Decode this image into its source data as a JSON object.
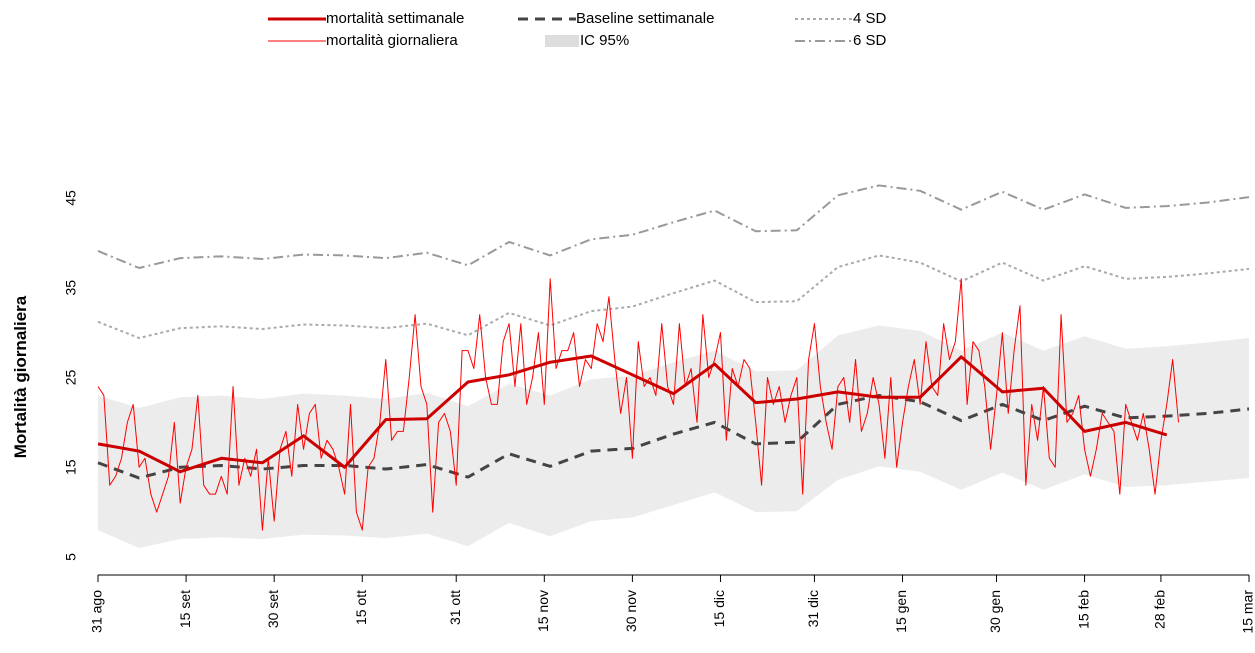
{
  "chart_data": {
    "type": "line",
    "y_label": "Mortalità giornaliera",
    "xlim": [
      0,
      196
    ],
    "ylim": [
      5,
      45
    ],
    "xticks": [
      {
        "value": 0,
        "label": "31 ago"
      },
      {
        "value": 15,
        "label": "15 set"
      },
      {
        "value": 30,
        "label": "30 set"
      },
      {
        "value": 45,
        "label": "15 ott"
      },
      {
        "value": 61,
        "label": "31 ott"
      },
      {
        "value": 76,
        "label": "15 nov"
      },
      {
        "value": 91,
        "label": "30 nov"
      },
      {
        "value": 106,
        "label": "15 dic"
      },
      {
        "value": 122,
        "label": "31 dic"
      },
      {
        "value": 137,
        "label": "15 gen"
      },
      {
        "value": 153,
        "label": "30 gen"
      },
      {
        "value": 168,
        "label": "15 feb"
      },
      {
        "value": 181,
        "label": "28 feb"
      },
      {
        "value": 196,
        "label": "15 mar"
      }
    ],
    "yticks": [
      5,
      15,
      25,
      35,
      45
    ],
    "series": [
      {
        "name": "mortalità settimanale",
        "color": "#cc0000",
        "width": 3,
        "dash": "none",
        "x": [
          0,
          7,
          14,
          21,
          28,
          35,
          42,
          49,
          56,
          63,
          70,
          77,
          84,
          91,
          98,
          105,
          112,
          119,
          126,
          133,
          140,
          147,
          154,
          161,
          168,
          175,
          182
        ],
        "values": [
          17.6,
          16.8,
          14.5,
          16,
          15.5,
          18.5,
          15,
          20.3,
          20.4,
          24.5,
          25.3,
          26.7,
          27.4,
          25.3,
          23.2,
          26.5,
          22.2,
          22.6,
          23.4,
          22.8,
          22.8,
          27.3,
          23.4,
          23.8,
          19,
          20,
          18.6
        ]
      },
      {
        "name": "mortalità giornaliera",
        "color": "#ff0000",
        "width": 1,
        "dash": "none",
        "x": [
          0,
          1,
          2,
          3,
          4,
          5,
          6,
          7,
          8,
          9,
          10,
          11,
          12,
          13,
          14,
          15,
          16,
          17,
          18,
          19,
          20,
          21,
          22,
          23,
          24,
          25,
          26,
          27,
          28,
          29,
          30,
          31,
          32,
          33,
          34,
          35,
          36,
          37,
          38,
          39,
          40,
          41,
          42,
          43,
          44,
          45,
          46,
          47,
          48,
          49,
          50,
          51,
          52,
          53,
          54,
          55,
          56,
          57,
          58,
          59,
          60,
          61,
          62,
          63,
          64,
          65,
          66,
          67,
          68,
          69,
          70,
          71,
          72,
          73,
          74,
          75,
          76,
          77,
          78,
          79,
          80,
          81,
          82,
          83,
          84,
          85,
          86,
          87,
          88,
          89,
          90,
          91,
          92,
          93,
          94,
          95,
          96,
          97,
          98,
          99,
          100,
          101,
          102,
          103,
          104,
          105,
          106,
          107,
          108,
          109,
          110,
          111,
          112,
          113,
          114,
          115,
          116,
          117,
          118,
          119,
          120,
          121,
          122,
          123,
          124,
          125,
          126,
          127,
          128,
          129,
          130,
          131,
          132,
          133,
          134,
          135,
          136,
          137,
          138,
          139,
          140,
          141,
          142,
          143,
          144,
          145,
          146,
          147,
          148,
          149,
          150,
          151,
          152,
          153,
          154,
          155,
          156,
          157,
          158,
          159,
          160,
          161,
          162,
          163,
          164,
          165,
          166,
          167,
          168,
          169,
          170,
          171,
          172,
          173,
          174,
          175,
          176,
          177,
          178,
          179,
          180,
          181,
          182,
          183,
          184
        ],
        "values": [
          24,
          23,
          13,
          14,
          16,
          20,
          22,
          15,
          16,
          12,
          10,
          12,
          14,
          20,
          11,
          15,
          17,
          23,
          13,
          12,
          12,
          14,
          12,
          24,
          13,
          16,
          14,
          17,
          8,
          16,
          9,
          17,
          19,
          14,
          22,
          17,
          21,
          22,
          16,
          18,
          17,
          15,
          12,
          22,
          10,
          8,
          15,
          16,
          20,
          27,
          18,
          19,
          19,
          25,
          32,
          24,
          22,
          10,
          20,
          21,
          19,
          13,
          28,
          28,
          26,
          32,
          25,
          22,
          22,
          29,
          31,
          24,
          31,
          22,
          25,
          30,
          22,
          36,
          26,
          28,
          28,
          30,
          24,
          27,
          26,
          31,
          29,
          34,
          27,
          21,
          25,
          16,
          29,
          24,
          25,
          23,
          31,
          24,
          22,
          31,
          24,
          26,
          20,
          32,
          25,
          27,
          30,
          18,
          26,
          24,
          27,
          26,
          20,
          13,
          25,
          22,
          24,
          20,
          23,
          25,
          12,
          27,
          31,
          24,
          20,
          17,
          24,
          25,
          20,
          27,
          19,
          21,
          25,
          22,
          16,
          25,
          15,
          20,
          24,
          27,
          22,
          29,
          24,
          23,
          31,
          27,
          29,
          36,
          22,
          29,
          28,
          24,
          17,
          23,
          30,
          21,
          28,
          33,
          13,
          22,
          18,
          24,
          16,
          15,
          32,
          20,
          21,
          23,
          17,
          14,
          17,
          21,
          20,
          19,
          12,
          22,
          20,
          18,
          21,
          17,
          12,
          18,
          22,
          27,
          20
        ]
      },
      {
        "name": "Baseline settimanale",
        "color": "#444444",
        "width": 3,
        "dash": "10,7",
        "x": [
          0,
          7,
          14,
          21,
          28,
          35,
          42,
          49,
          56,
          63,
          70,
          77,
          84,
          91,
          98,
          105,
          112,
          119,
          126,
          133,
          140,
          147,
          154,
          161,
          168,
          175,
          182,
          189,
          196
        ],
        "values": [
          15.5,
          13.8,
          15,
          15.2,
          14.8,
          15.2,
          15.2,
          14.8,
          15.3,
          13.9,
          16.5,
          15.1,
          16.8,
          17.1,
          18.7,
          20,
          17.6,
          17.8,
          22,
          23,
          22.3,
          20.2,
          22,
          20.2,
          21.8,
          20.5,
          20.7,
          21,
          21.5
        ]
      },
      {
        "name": "IC 95%",
        "type": "band",
        "color": "#dddddd",
        "x": [
          0,
          7,
          14,
          21,
          28,
          35,
          42,
          49,
          56,
          63,
          70,
          77,
          84,
          91,
          98,
          105,
          112,
          119,
          126,
          133,
          140,
          147,
          154,
          161,
          168,
          175,
          182,
          189,
          196
        ],
        "lower": [
          8,
          6,
          7,
          7.2,
          7,
          7.5,
          7.4,
          7.1,
          7.6,
          6.2,
          8.8,
          7.3,
          9,
          9.4,
          10.8,
          12.2,
          10,
          10.1,
          13.6,
          15.1,
          14.5,
          12.5,
          14.4,
          12.5,
          14.2,
          12.8,
          13,
          13.4,
          13.8
        ],
        "upper": [
          23,
          21.6,
          22.8,
          23,
          22.6,
          23.2,
          23,
          22.6,
          23.3,
          21.8,
          24.3,
          23,
          24.8,
          25.2,
          26.7,
          28,
          25.7,
          25.8,
          29.7,
          30.8,
          30.2,
          28,
          30,
          28,
          29.6,
          28.2,
          28.5,
          28.9,
          29.4
        ]
      },
      {
        "name": "4 SD",
        "color": "#aaaaaa",
        "width": 2,
        "dash": "3,3",
        "x": [
          0,
          7,
          14,
          21,
          28,
          35,
          42,
          49,
          56,
          63,
          70,
          77,
          84,
          91,
          98,
          105,
          112,
          119,
          126,
          133,
          140,
          147,
          154,
          161,
          168,
          175,
          182,
          189,
          196
        ],
        "values": [
          31.2,
          29.4,
          30.5,
          30.7,
          30.4,
          30.9,
          30.8,
          30.5,
          31,
          29.7,
          32.2,
          30.8,
          32.4,
          32.9,
          34.4,
          35.8,
          33.4,
          33.5,
          37.3,
          38.6,
          37.8,
          35.7,
          37.8,
          35.8,
          37.4,
          36,
          36.2,
          36.6,
          37.1
        ]
      },
      {
        "name": "6 SD",
        "color": "#999999",
        "width": 2,
        "dash": "10,4,2,4",
        "x": [
          0,
          7,
          14,
          21,
          28,
          35,
          42,
          49,
          56,
          63,
          70,
          77,
          84,
          91,
          98,
          105,
          112,
          119,
          126,
          133,
          140,
          147,
          154,
          161,
          168,
          175,
          182,
          189,
          196
        ],
        "values": [
          39.1,
          37.2,
          38.3,
          38.5,
          38.2,
          38.7,
          38.6,
          38.3,
          38.9,
          37.5,
          40.1,
          38.6,
          40.4,
          40.9,
          42.3,
          43.6,
          41.3,
          41.4,
          45.3,
          46.4,
          45.8,
          43.7,
          45.7,
          43.7,
          45.4,
          43.9,
          44.1,
          44.5,
          45.1
        ]
      }
    ]
  }
}
